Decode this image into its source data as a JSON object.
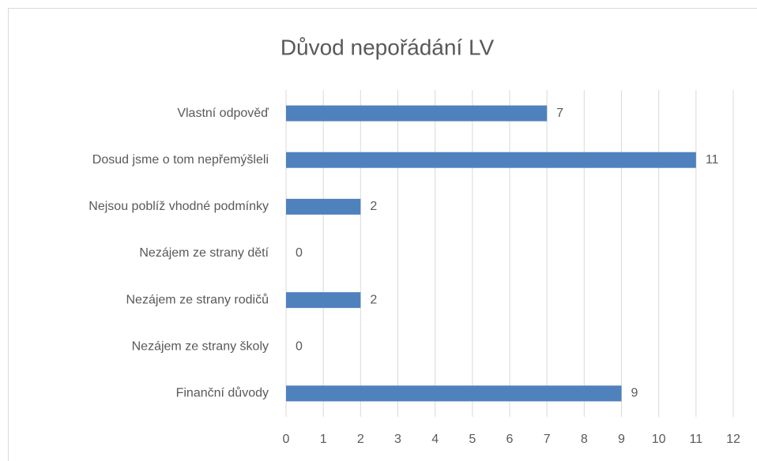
{
  "chart_data": {
    "type": "bar",
    "orientation": "horizontal",
    "title": "Důvod nepořádání LV",
    "categories": [
      "Vlastní odpověď",
      "Dosud jsme o tom nepřemýšleli",
      "Nejsou poblíž vhodné podmínky",
      "Nezájem ze strany dětí",
      "Nezájem ze strany rodičů",
      "Nezájem ze strany školy",
      "Finanční důvody"
    ],
    "values": [
      7,
      11,
      2,
      0,
      2,
      0,
      9
    ],
    "color": "#4f81bd",
    "xlim": [
      0,
      12
    ],
    "xticks": [
      0,
      1,
      2,
      3,
      4,
      5,
      6,
      7,
      8,
      9,
      10,
      11,
      12
    ],
    "grid": true
  }
}
